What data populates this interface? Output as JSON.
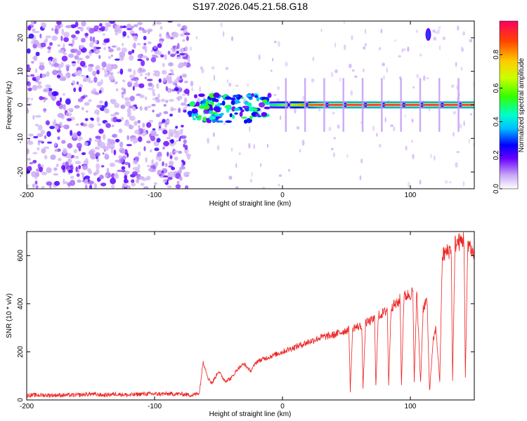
{
  "chart_data": [
    {
      "type": "heatmap",
      "title": "S197.2026.045.21.58.G18",
      "xlabel": "Height of straight line (km)",
      "ylabel": "Frequency (Hz)",
      "xlim": [
        -200,
        150
      ],
      "ylim": [
        -25,
        25
      ],
      "xticks": [
        -200,
        -100,
        0,
        100
      ],
      "yticks": [
        -20,
        -10,
        0,
        10,
        20
      ],
      "colorbar": {
        "label": "Normalized spectral amplitude",
        "range": [
          0,
          1
        ],
        "ticks": [
          "0.0",
          "0.2",
          "0.4",
          "0.6",
          "0.8"
        ]
      },
      "features": [
        {
          "name": "noise",
          "x_range": [
            -200,
            -73
          ],
          "freq_range": [
            -25,
            25
          ],
          "amplitude": 0.1
        },
        {
          "name": "tracking-onset",
          "x_range": [
            -73,
            -10
          ],
          "freq_range": [
            -5,
            3
          ],
          "amplitude": 0.4
        },
        {
          "name": "carrier-line",
          "x_range": [
            -10,
            150
          ],
          "freq": 0,
          "amplitude_range": [
            0.5,
            1.0
          ]
        },
        {
          "name": "spike",
          "x": 114,
          "freq": 21,
          "amplitude": 0.3
        }
      ]
    },
    {
      "type": "line",
      "xlabel": "Height of straight line (km)",
      "ylabel": "SNR (10 * v/v)",
      "xlim": [
        -200,
        150
      ],
      "ylim": [
        0,
        700
      ],
      "xticks": [
        -200,
        -100,
        0,
        100
      ],
      "yticks": [
        0,
        200,
        400,
        600
      ],
      "series": [
        {
          "name": "SNR",
          "color": "#ee2222",
          "x": [
            -200,
            -190,
            -180,
            -170,
            -160,
            -150,
            -140,
            -130,
            -120,
            -110,
            -100,
            -90,
            -80,
            -70,
            -65,
            -62,
            -58,
            -55,
            -50,
            -45,
            -40,
            -35,
            -30,
            -25,
            -20,
            -15,
            -10,
            -5,
            0,
            10,
            20,
            30,
            40,
            50,
            52,
            53,
            55,
            60,
            62,
            63,
            65,
            70,
            72,
            73,
            75,
            80,
            82,
            83,
            85,
            90,
            92,
            93,
            95,
            100,
            102,
            103,
            105,
            108,
            110,
            113,
            115,
            118,
            120,
            123,
            125,
            130,
            132,
            133,
            135,
            140,
            142,
            143,
            145,
            150
          ],
          "y": [
            20,
            20,
            20,
            20,
            20,
            25,
            20,
            25,
            20,
            25,
            25,
            25,
            25,
            20,
            30,
            160,
            90,
            70,
            120,
            80,
            90,
            130,
            150,
            120,
            160,
            170,
            180,
            190,
            200,
            220,
            240,
            260,
            270,
            290,
            290,
            40,
            300,
            305,
            310,
            50,
            320,
            330,
            340,
            60,
            350,
            365,
            380,
            60,
            390,
            400,
            420,
            60,
            430,
            440,
            450,
            70,
            450,
            70,
            380,
            420,
            40,
            250,
            300,
            80,
            600,
            620,
            630,
            80,
            650,
            660,
            670,
            90,
            660,
            600
          ]
        }
      ]
    }
  ]
}
